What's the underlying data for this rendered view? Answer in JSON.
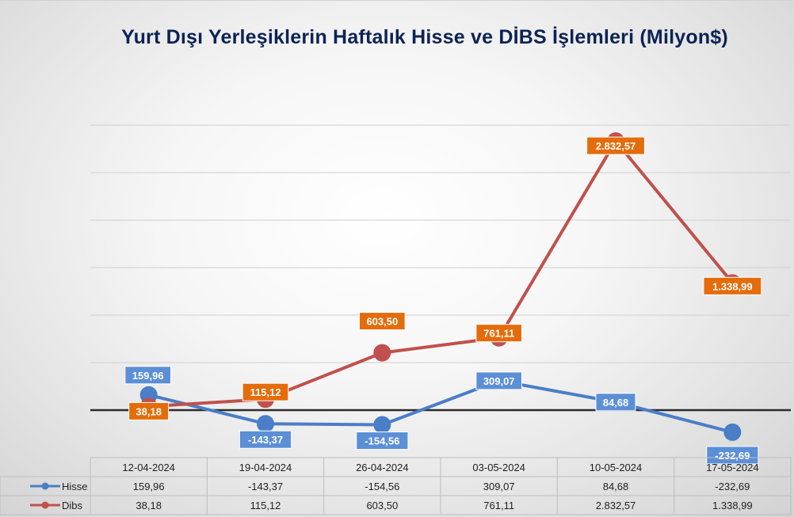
{
  "chart_data": {
    "type": "line",
    "title": "Yurt Dışı Yerleşiklerin Haftalık Hisse ve DİBS İşlemleri (Milyon$)",
    "categories": [
      "12-04-2024",
      "19-04-2024",
      "26-04-2024",
      "03-05-2024",
      "10-05-2024",
      "17-05-2024"
    ],
    "series": [
      {
        "name": "Hisse",
        "values": [
          159.96,
          -143.37,
          -154.56,
          309.07,
          84.68,
          -232.69
        ],
        "labels": [
          "159,96",
          "-143,37",
          "-154,56",
          "309,07",
          "84,68",
          "-232,69"
        ],
        "color": "#4a7ec6",
        "label_color": "#5b8fd6"
      },
      {
        "name": "Dibs",
        "values": [
          38.18,
          115.12,
          603.5,
          761.11,
          2832.57,
          1338.99
        ],
        "labels": [
          "38,18",
          "115,12",
          "603,50",
          "761,11",
          "2.832,57",
          "1.338,99"
        ],
        "color": "#c0504d",
        "label_color": "#e46c0a"
      }
    ],
    "ylim": [
      -500,
      3000
    ],
    "grid": true,
    "legend": "data-table",
    "data_table": true
  }
}
